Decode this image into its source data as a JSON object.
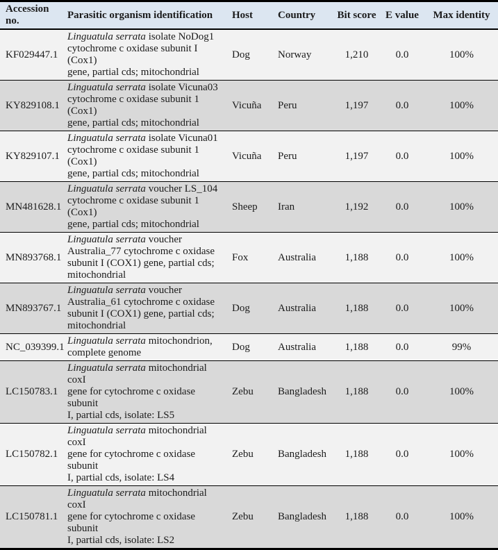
{
  "colors": {
    "header_bg": "#dce6f1",
    "row_shaded_bg": "#d9d9d9",
    "row_plain_bg": "#f2f2f2",
    "border": "#000000",
    "text": "#1b1b1b"
  },
  "table": {
    "columns": [
      {
        "label": "Accession\nno."
      },
      {
        "label": "Parasitic organism identification"
      },
      {
        "label": "Host"
      },
      {
        "label": "Country"
      },
      {
        "label": "Bit score"
      },
      {
        "label": "E value"
      },
      {
        "label": "Max identity"
      }
    ],
    "rows": [
      {
        "accession": "KF029447.1",
        "organism_italic": "Linguatula serrata",
        "organism_rest": " isolate NoDog1\ncytochrome c oxidase subunit I (Cox1)\ngene, partial cds; mitochondrial",
        "host": "Dog",
        "country": "Norway",
        "bit_score": "1,210",
        "e_value": "0.0",
        "max_identity": "100%"
      },
      {
        "accession": "KY829108.1",
        "organism_italic": "Linguatula serrata",
        "organism_rest": " isolate Vicuna03\ncytochrome c oxidase subunit 1 (Cox1)\ngene, partial cds; mitochondrial",
        "host": "Vicuña",
        "country": "Peru",
        "bit_score": "1,197",
        "e_value": "0.0",
        "max_identity": "100%"
      },
      {
        "accession": "KY829107.1",
        "organism_italic": "Linguatula serrata",
        "organism_rest": " isolate Vicuna01\ncytochrome c oxidase subunit 1 (Cox1)\ngene, partial cds; mitochondrial",
        "host": "Vicuña",
        "country": "Peru",
        "bit_score": "1,197",
        "e_value": "0.0",
        "max_identity": "100%"
      },
      {
        "accession": "MN481628.1",
        "organism_italic": "Linguatula serrata",
        "organism_rest": " voucher LS_104\ncytochrome c oxidase subunit 1 (Cox1)\ngene, partial cds; mitochondrial",
        "host": "Sheep",
        "country": "Iran",
        "bit_score": "1,192",
        "e_value": "0.0",
        "max_identity": "100%"
      },
      {
        "accession": "MN893768.1",
        "organism_italic": "Linguatula serrata",
        "organism_rest": " voucher\nAustralia_77 cytochrome c oxidase\nsubunit I (COX1) gene, partial cds;\nmitochondrial",
        "host": "Fox",
        "country": "Australia",
        "bit_score": "1,188",
        "e_value": "0.0",
        "max_identity": "100%"
      },
      {
        "accession": "MN893767.1",
        "organism_italic": "Linguatula serrata",
        "organism_rest": " voucher\nAustralia_61 cytochrome c oxidase\nsubunit I (COX1) gene, partial cds;\nmitochondrial",
        "host": "Dog",
        "country": "Australia",
        "bit_score": "1,188",
        "e_value": "0.0",
        "max_identity": "100%"
      },
      {
        "accession": "NC_039399.1",
        "organism_italic": "Linguatula serrata",
        "organism_rest": " mitochondrion,\ncomplete genome",
        "host": "Dog",
        "country": "Australia",
        "bit_score": "1,188",
        "e_value": "0.0",
        "max_identity": "99%"
      },
      {
        "accession": "LC150783.1",
        "organism_italic": "Linguatula serrata",
        "organism_rest": " mitochondrial coxI\ngene for cytochrome c oxidase subunit\nI, partial cds, isolate: LS5",
        "host": "Zebu",
        "country": "Bangladesh",
        "bit_score": "1,188",
        "e_value": "0.0",
        "max_identity": "100%"
      },
      {
        "accession": "LC150782.1",
        "organism_italic": "Linguatula serrata",
        "organism_rest": " mitochondrial coxI\ngene for cytochrome c oxidase subunit\nI, partial cds, isolate: LS4",
        "host": "Zebu",
        "country": "Bangladesh",
        "bit_score": "1,188",
        "e_value": "0.0",
        "max_identity": "100%"
      },
      {
        "accession": "LC150781.1",
        "organism_italic": "Linguatula serrata",
        "organism_rest": " mitochondrial coxI\ngene for cytochrome c oxidase subunit\nI, partial cds, isolate: LS2",
        "host": "Zebu",
        "country": "Bangladesh",
        "bit_score": "1,188",
        "e_value": "0.0",
        "max_identity": "100%"
      }
    ]
  }
}
